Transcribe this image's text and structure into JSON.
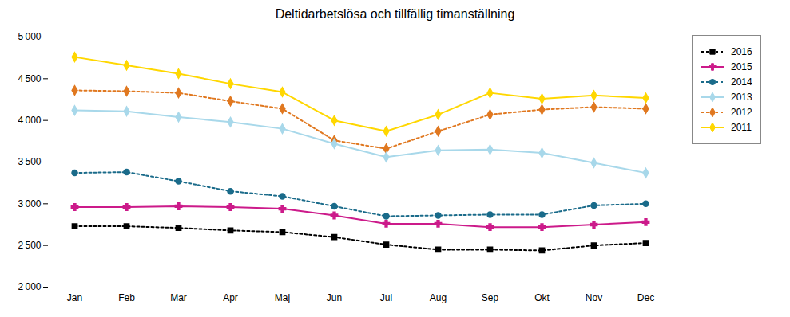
{
  "chart_data": {
    "type": "line",
    "title": "Deltidarbetslösa och tillfällig timanställning",
    "categories": [
      "Jan",
      "Feb",
      "Mar",
      "Apr",
      "Maj",
      "Jun",
      "Jul",
      "Aug",
      "Sep",
      "Okt",
      "Nov",
      "Dec"
    ],
    "series": [
      {
        "name": "2016",
        "color": "#000000",
        "line_style": "dotted",
        "marker": "square",
        "values": [
          2730,
          2730,
          2710,
          2680,
          2660,
          2600,
          2510,
          2450,
          2450,
          2440,
          2500,
          2530
        ]
      },
      {
        "name": "2015",
        "color": "#CC1A8A",
        "line_style": "solid",
        "marker": "plus",
        "values": [
          2960,
          2960,
          2970,
          2960,
          2940,
          2860,
          2760,
          2760,
          2720,
          2720,
          2750,
          2780
        ]
      },
      {
        "name": "2014",
        "color": "#1A6B8A",
        "line_style": "dotted",
        "marker": "circle",
        "values": [
          3370,
          3380,
          3270,
          3150,
          3090,
          2970,
          2850,
          2860,
          2870,
          2870,
          2980,
          3000
        ]
      },
      {
        "name": "2013",
        "color": "#A8D8EA",
        "line_style": "solid",
        "marker": "diamond",
        "values": [
          4120,
          4110,
          4040,
          3980,
          3900,
          3720,
          3560,
          3640,
          3650,
          3610,
          3490,
          3370
        ]
      },
      {
        "name": "2012",
        "color": "#E07820",
        "line_style": "dotted",
        "marker": "diamond",
        "values": [
          4360,
          4350,
          4330,
          4230,
          4140,
          3760,
          3660,
          3870,
          4070,
          4130,
          4160,
          4140
        ]
      },
      {
        "name": "2011",
        "color": "#FFD700",
        "line_style": "solid",
        "marker": "diamond",
        "values": [
          4760,
          4660,
          4560,
          4440,
          4340,
          4000,
          3870,
          4070,
          4330,
          4260,
          4300,
          4270
        ]
      }
    ],
    "ylim": [
      2000,
      5000
    ],
    "yticks": [
      {
        "value": 2000,
        "label": "2 000"
      },
      {
        "value": 2500,
        "label": "2 500"
      },
      {
        "value": 3000,
        "label": "3 000"
      },
      {
        "value": 3500,
        "label": "3 500"
      },
      {
        "value": 4000,
        "label": "4 000"
      },
      {
        "value": 4500,
        "label": "4 500"
      },
      {
        "value": 5000,
        "label": "5 000"
      }
    ],
    "grid": false,
    "legend": "right"
  }
}
